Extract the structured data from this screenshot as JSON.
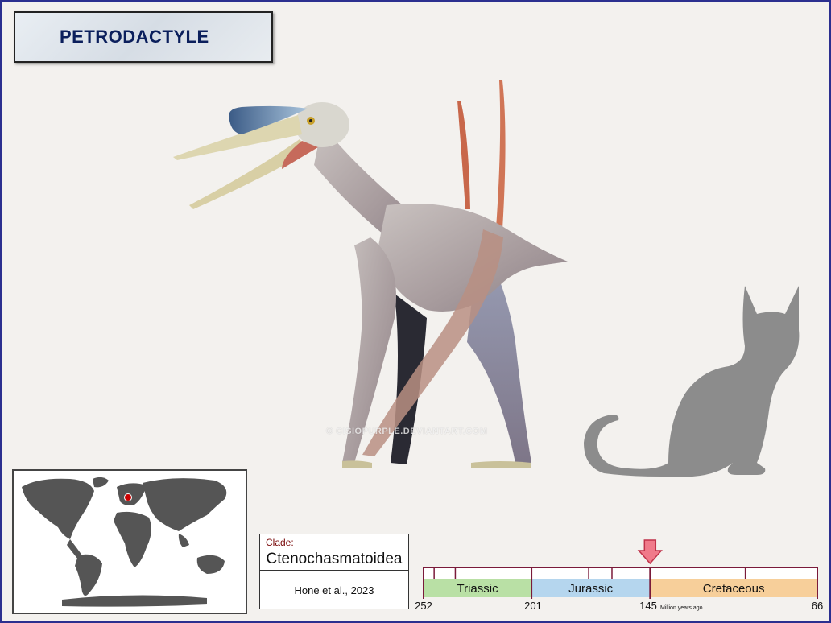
{
  "title": "PETRODACTYLE",
  "watermark": "© CISIOPURPLE.DEVIANTART.COM",
  "clade": {
    "label": "Clade:",
    "name": "Ctenochasmatoidea",
    "citation": "Hone et al., 2023"
  },
  "timeline": {
    "periods": [
      {
        "name": "Triassic",
        "start": 252,
        "end": 201,
        "color": "#b9e0a5"
      },
      {
        "name": "Jurassic",
        "start": 201,
        "end": 145,
        "color": "#b5d6ee"
      },
      {
        "name": "Cretaceous",
        "start": 145,
        "end": 66,
        "color": "#f7cf9a"
      }
    ],
    "ticks": [
      "252",
      "201",
      "145",
      "66"
    ],
    "unit": "Million years ago",
    "marker_mya": 145
  },
  "map": {
    "marker_region": "Europe",
    "marker_color": "#cc0000"
  },
  "colors": {
    "frame": "#2b2f8f",
    "title_text": "#0b1f5c",
    "arrow": "#f07a8a"
  },
  "icons": {
    "time_marker": "down-arrow-icon",
    "location": "location-dot-icon"
  }
}
